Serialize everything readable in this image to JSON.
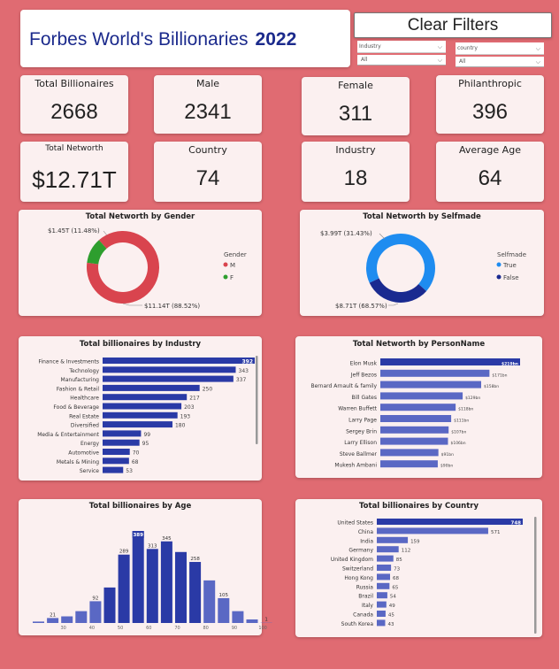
{
  "header": {
    "title": "Forbes World's Billionaries",
    "year": "2022"
  },
  "toolbar": {
    "clear_label": "Clear Filters"
  },
  "filters": {
    "industry": {
      "label": "Industry",
      "value": "All"
    },
    "country": {
      "label": "country",
      "value": "All"
    }
  },
  "kpis": {
    "total_billionaires": {
      "label": "Total Billionaires",
      "value": "2668"
    },
    "male": {
      "label": "Male",
      "value": "2341"
    },
    "female": {
      "label": "Female",
      "value": "311"
    },
    "philanthropic": {
      "label": "Philanthropic",
      "value": "396"
    },
    "total_networth": {
      "label": "Total Networth",
      "value": "$12.71T"
    },
    "country": {
      "label": "Country",
      "value": "74"
    },
    "industry": {
      "label": "Industry",
      "value": "18"
    },
    "average_age": {
      "label": "Average Age",
      "value": "64"
    }
  },
  "colors": {
    "page_bg": "#e06b72",
    "bar": "#2a3aa6",
    "bar_light": "#5a68c4",
    "male": "#d9444e",
    "female": "#2e9e2e",
    "selfmade_true": "#1e8cf0",
    "selfmade_false": "#1a2a90"
  },
  "chart_data": [
    {
      "type": "pie",
      "title": "Total Networth by Gender",
      "legend_title": "Gender",
      "legend_position": "right",
      "labels": [
        "M",
        "F"
      ],
      "values": [
        11.14,
        1.45
      ],
      "value_labels": [
        "$11.14T (88.52%)",
        "$1.45T (11.48%)"
      ],
      "colors": [
        "#d9444e",
        "#2e9e2e"
      ]
    },
    {
      "type": "pie",
      "title": "Total Networth by Selfmade",
      "legend_title": "Selfmade",
      "legend_position": "right",
      "labels": [
        "True",
        "False"
      ],
      "values": [
        8.71,
        3.99
      ],
      "value_labels": [
        "$8.71T (68.57%)",
        "$3.99T (31.43%)"
      ],
      "colors": [
        "#1e8cf0",
        "#1a2a90"
      ]
    },
    {
      "type": "bar",
      "title": "Total billionaires by Industry",
      "orientation": "horizontal",
      "categories": [
        "Finance & Investments",
        "Technology",
        "Manufacturing",
        "Fashion & Retail",
        "Healthcare",
        "Food & Beverage",
        "Real Estate",
        "Diversified",
        "Media & Entertainment",
        "Energy",
        "Automotive",
        "Metals & Mining",
        "Service"
      ],
      "values": [
        392,
        343,
        337,
        250,
        217,
        203,
        193,
        180,
        99,
        95,
        70,
        68,
        53
      ],
      "value_labels": [
        "392",
        "343",
        "337",
        "250",
        "217",
        "203",
        "193",
        "180",
        "99",
        "95",
        "70",
        "68",
        "53"
      ],
      "xlim": [
        0,
        392
      ]
    },
    {
      "type": "bar",
      "title": "Total Networth by PersonName",
      "orientation": "horizontal",
      "categories": [
        "Elon Musk",
        "Jeff Bezos",
        "Bernard Arnault & family",
        "Bill Gates",
        "Warren Buffett",
        "Larry Page",
        "Sergey Brin",
        "Larry Ellison",
        "Steve Ballmer",
        "Mukesh Ambani"
      ],
      "values": [
        219,
        171,
        158,
        129,
        118,
        111,
        107,
        106,
        91,
        90
      ],
      "value_labels": [
        "$219bn",
        "$171bn",
        "$158bn",
        "$129bn",
        "$118bn",
        "$111bn",
        "$107bn",
        "$106bn",
        "$91bn",
        "$90bn"
      ],
      "xlim": [
        0,
        219
      ]
    },
    {
      "type": "bar",
      "title": "Total billionaires by Age",
      "orientation": "vertical",
      "x": [
        20,
        25,
        30,
        35,
        40,
        45,
        50,
        55,
        60,
        65,
        70,
        75,
        80,
        85,
        90,
        95,
        100
      ],
      "values": [
        6,
        21,
        28,
        50,
        92,
        150,
        289,
        389,
        313,
        345,
        300,
        258,
        180,
        105,
        50,
        15,
        1
      ],
      "value_labels": [
        "",
        "21",
        "",
        "",
        "92",
        "",
        "289",
        "389",
        "313",
        "345",
        "",
        "258",
        "",
        "105",
        "",
        "",
        "1"
      ],
      "x_ticks": [
        "30",
        "40",
        "50",
        "60",
        "70",
        "80",
        "90",
        "100"
      ],
      "x_tick_values": [
        30,
        40,
        50,
        60,
        70,
        80,
        90,
        100
      ],
      "ylim": [
        0,
        389
      ]
    },
    {
      "type": "bar",
      "title": "Total billionaires by Country",
      "orientation": "horizontal",
      "categories": [
        "United States",
        "China",
        "India",
        "Germany",
        "United Kingdom",
        "Switzerland",
        "Hong Kong",
        "Russia",
        "Brazil",
        "Italy",
        "Canada",
        "South Korea"
      ],
      "values": [
        748,
        571,
        159,
        112,
        85,
        73,
        68,
        65,
        54,
        49,
        45,
        43
      ],
      "value_labels": [
        "748",
        "571",
        "159",
        "112",
        "85",
        "73",
        "68",
        "65",
        "54",
        "49",
        "45",
        "43"
      ],
      "xlim": [
        0,
        748
      ]
    }
  ]
}
